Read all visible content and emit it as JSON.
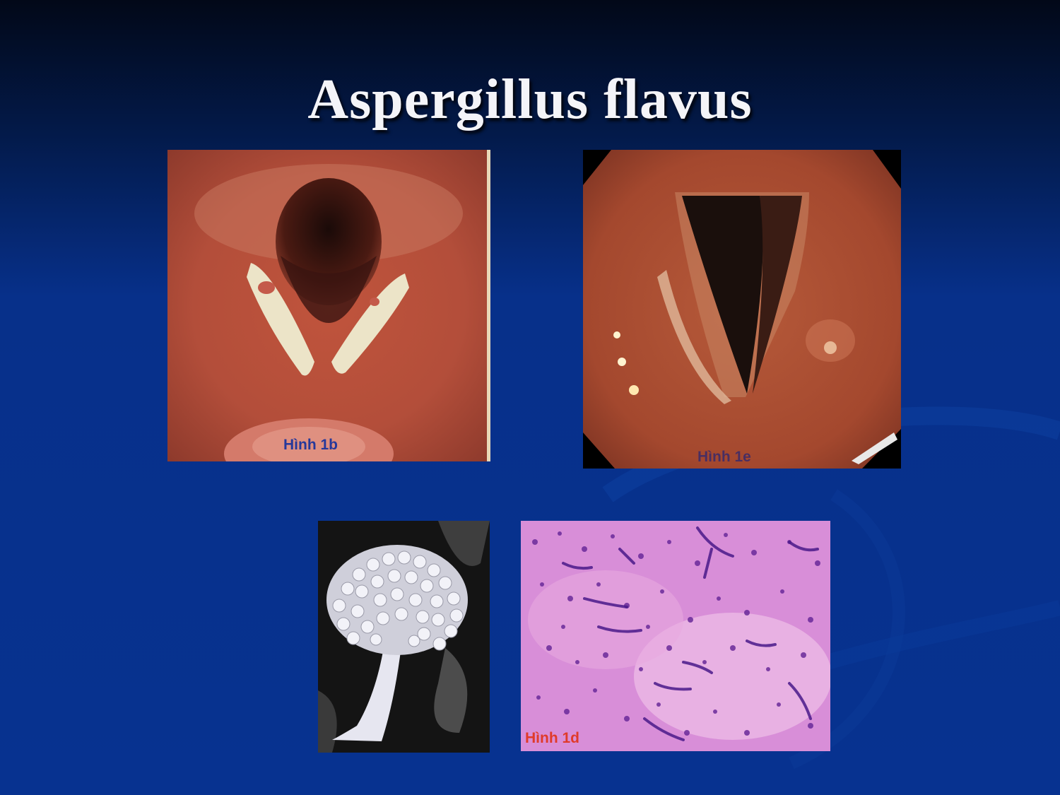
{
  "slide": {
    "title": "Aspergillus flavus",
    "images": [
      {
        "name": "laryngoscopy-vocal-cords-lesions",
        "caption": "Hình 1b"
      },
      {
        "name": "laryngoscopy-vocal-cords",
        "caption": "Hình 1e"
      },
      {
        "name": "conidiophore-micrograph",
        "caption": ""
      },
      {
        "name": "histology-stained-tissue",
        "caption": "Hình 1d"
      }
    ]
  },
  "colors": {
    "background": "#07308a",
    "title": "#f4f4f8",
    "caption_blue": "#26389a",
    "caption_red": "#e03a2a"
  }
}
